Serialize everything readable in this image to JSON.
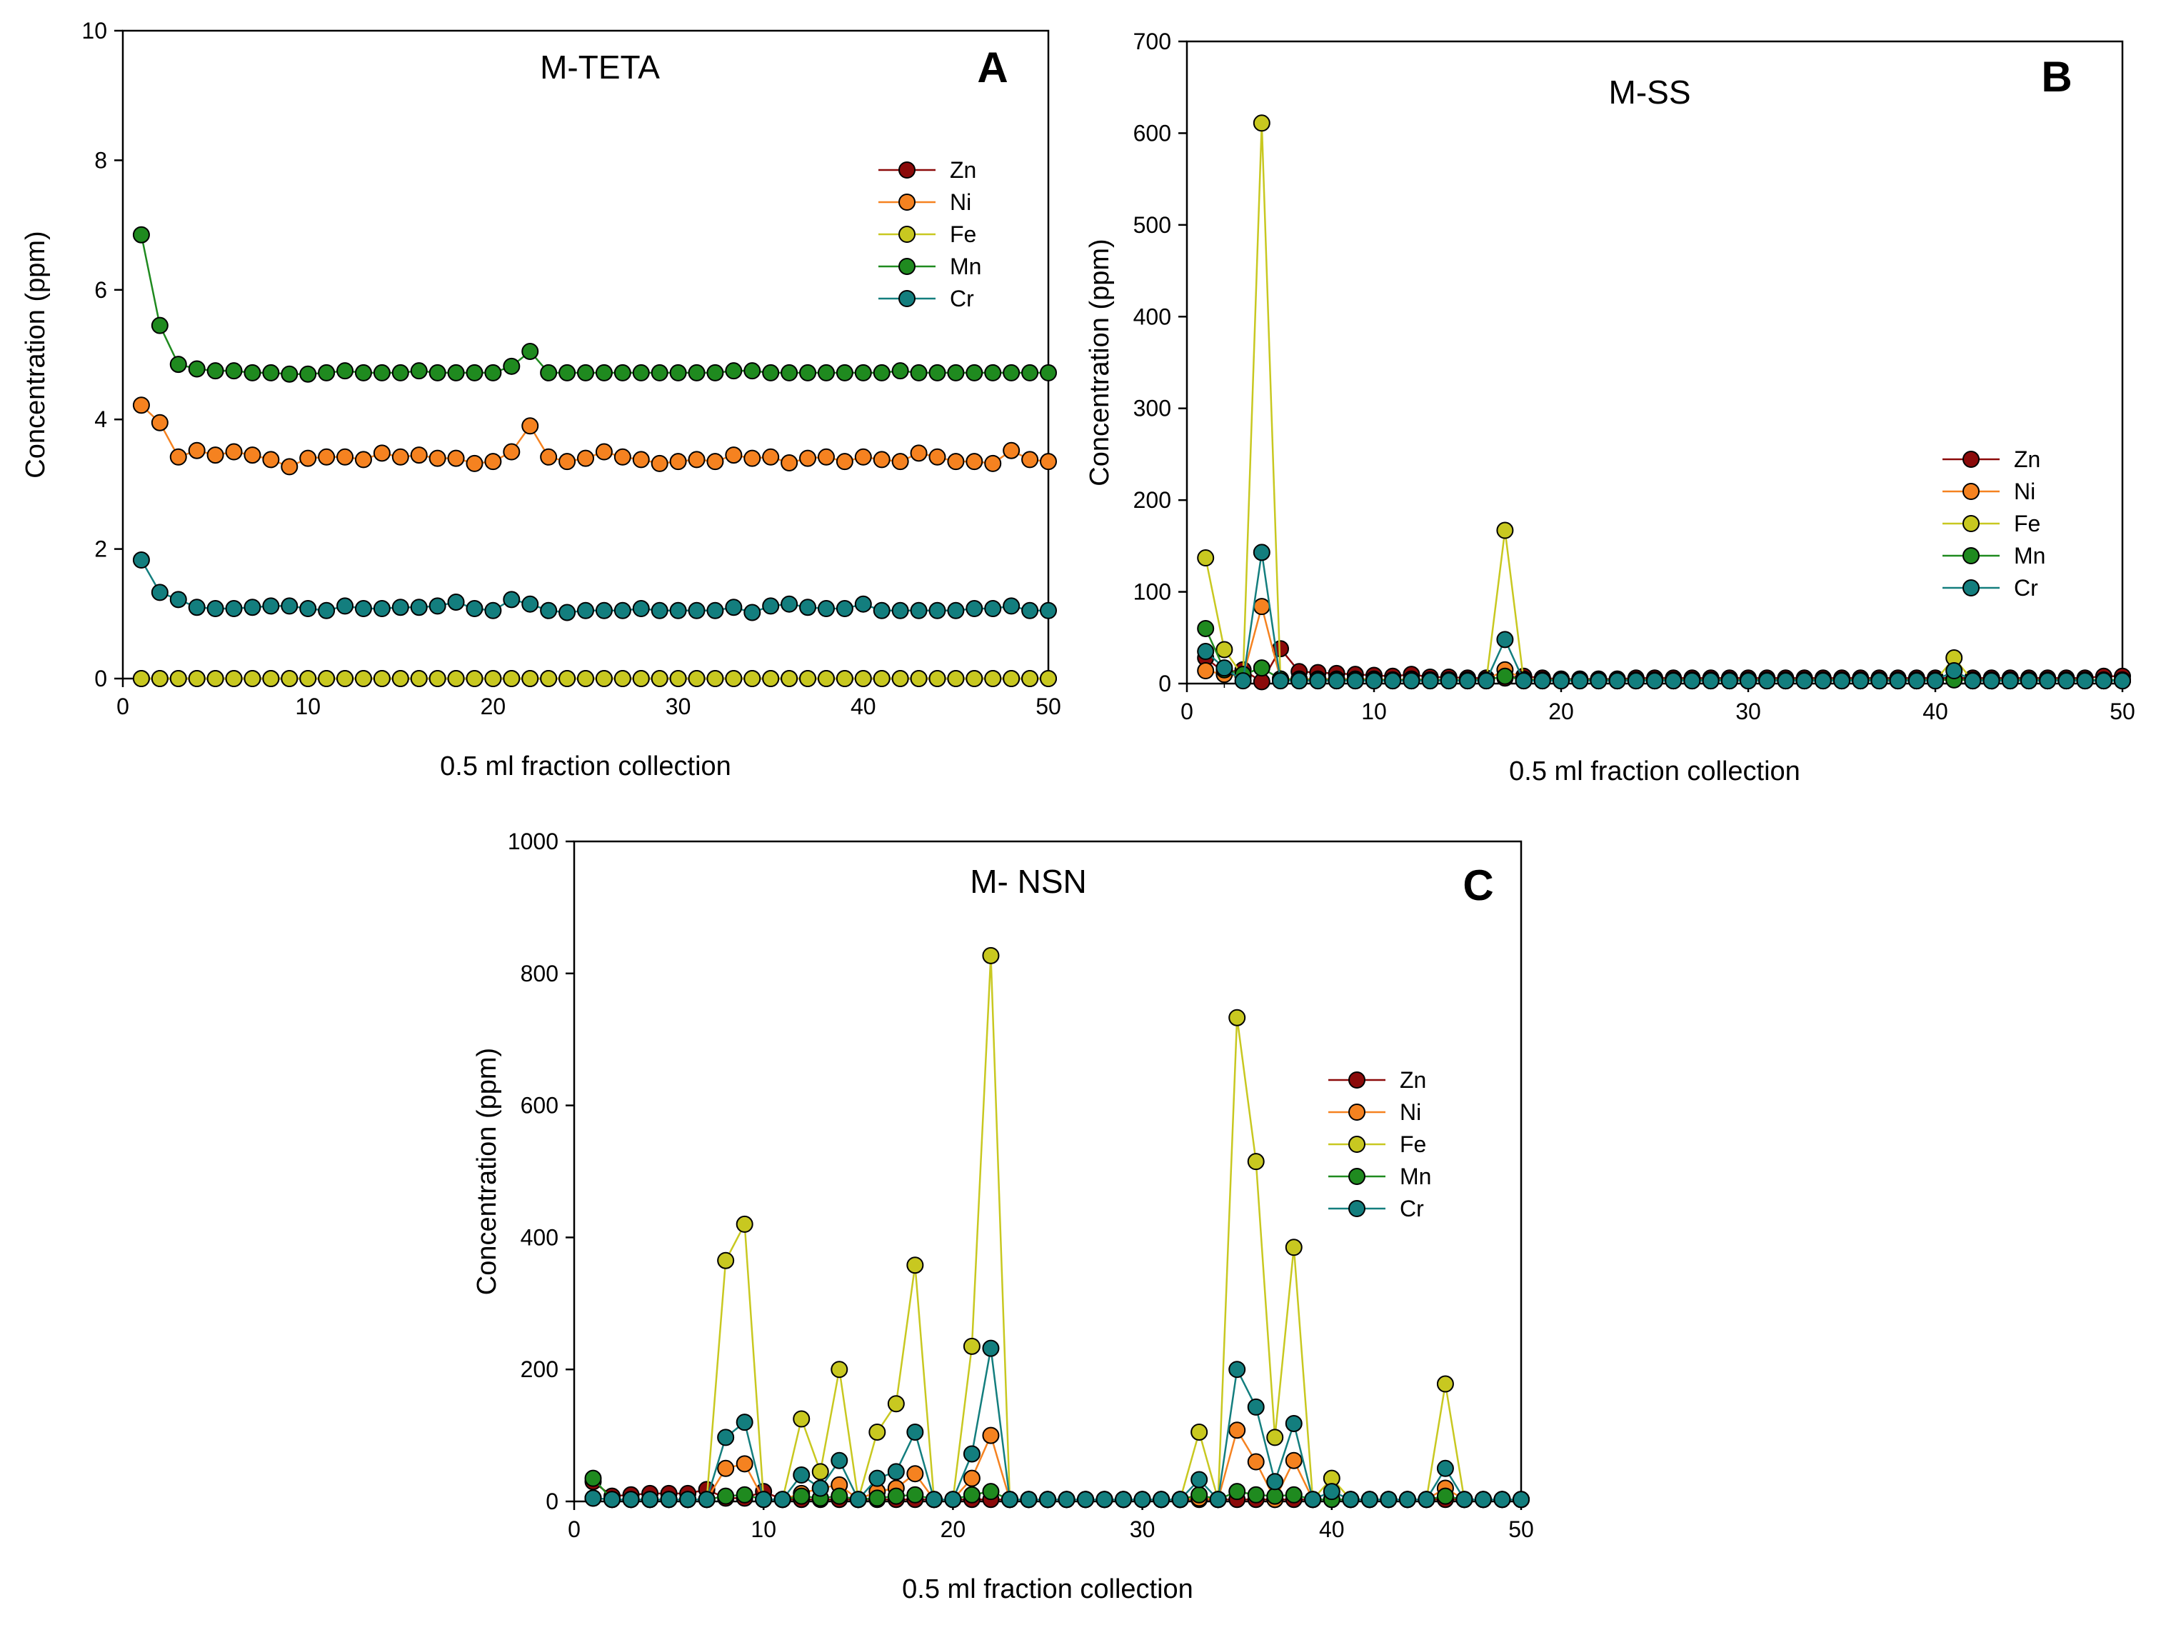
{
  "figure": {
    "colors": {
      "Zn": "#8B0A0A",
      "Ni": "#F58220",
      "Fe": "#C8C820",
      "Mn": "#1F8A1F",
      "Cr": "#137E7E"
    }
  },
  "chart_data": [
    {
      "type": "line",
      "panel": "A",
      "title": "M-TETA",
      "xlabel": "0.5 ml fraction collection",
      "ylabel": "Concentration (ppm)",
      "xlim": [
        0,
        50
      ],
      "ylim": [
        0,
        10
      ],
      "xticks": [
        0,
        10,
        20,
        30,
        40,
        50
      ],
      "yticks": [
        0,
        2,
        4,
        6,
        8,
        10
      ],
      "grid": false,
      "legend": "upper-right",
      "x": [
        1,
        2,
        3,
        4,
        5,
        6,
        7,
        8,
        9,
        10,
        11,
        12,
        13,
        14,
        15,
        16,
        17,
        18,
        19,
        20,
        21,
        22,
        23,
        24,
        25,
        26,
        27,
        28,
        29,
        30,
        31,
        32,
        33,
        34,
        35,
        36,
        37,
        38,
        39,
        40,
        41,
        42,
        43,
        44,
        45,
        46,
        47,
        48,
        49,
        50
      ],
      "series": [
        {
          "name": "Zn",
          "values": [
            0,
            0,
            0,
            0,
            0,
            0,
            0,
            0,
            0,
            0,
            0,
            0,
            0,
            0,
            0,
            0,
            0,
            0,
            0,
            0,
            0,
            0,
            0,
            0,
            0,
            0,
            0,
            0,
            0,
            0,
            0,
            0,
            0,
            0,
            0,
            0,
            0,
            0,
            0,
            0,
            0,
            0,
            0,
            0,
            0,
            0,
            0,
            0,
            0,
            0
          ]
        },
        {
          "name": "Ni",
          "values": [
            4.22,
            3.95,
            3.42,
            3.52,
            3.45,
            3.5,
            3.45,
            3.38,
            3.27,
            3.4,
            3.42,
            3.42,
            3.38,
            3.48,
            3.42,
            3.45,
            3.4,
            3.4,
            3.32,
            3.35,
            3.5,
            3.9,
            3.42,
            3.35,
            3.4,
            3.5,
            3.42,
            3.38,
            3.32,
            3.35,
            3.38,
            3.35,
            3.45,
            3.4,
            3.42,
            3.33,
            3.4,
            3.42,
            3.35,
            3.42,
            3.38,
            3.35,
            3.48,
            3.42,
            3.35,
            3.35,
            3.32,
            3.52,
            3.38,
            3.35
          ]
        },
        {
          "name": "Fe",
          "values": [
            0,
            0,
            0,
            0,
            0,
            0,
            0,
            0,
            0,
            0,
            0,
            0,
            0,
            0,
            0,
            0,
            0,
            0,
            0,
            0,
            0,
            0,
            0,
            0,
            0,
            0,
            0,
            0,
            0,
            0,
            0,
            0,
            0,
            0,
            0,
            0,
            0,
            0,
            0,
            0,
            0,
            0,
            0,
            0,
            0,
            0,
            0,
            0,
            0,
            0
          ]
        },
        {
          "name": "Mn",
          "values": [
            6.85,
            5.45,
            4.85,
            4.78,
            4.75,
            4.75,
            4.72,
            4.72,
            4.7,
            4.7,
            4.72,
            4.75,
            4.72,
            4.72,
            4.72,
            4.75,
            4.72,
            4.72,
            4.72,
            4.72,
            4.82,
            5.05,
            4.72,
            4.72,
            4.72,
            4.72,
            4.72,
            4.72,
            4.72,
            4.72,
            4.72,
            4.72,
            4.75,
            4.75,
            4.72,
            4.72,
            4.72,
            4.72,
            4.72,
            4.72,
            4.72,
            4.75,
            4.72,
            4.72,
            4.72,
            4.72,
            4.72,
            4.72,
            4.72,
            4.72
          ]
        },
        {
          "name": "Cr",
          "values": [
            1.83,
            1.33,
            1.22,
            1.1,
            1.08,
            1.08,
            1.1,
            1.12,
            1.12,
            1.08,
            1.05,
            1.12,
            1.08,
            1.08,
            1.1,
            1.1,
            1.12,
            1.18,
            1.08,
            1.05,
            1.22,
            1.15,
            1.05,
            1.02,
            1.05,
            1.05,
            1.05,
            1.08,
            1.05,
            1.05,
            1.05,
            1.05,
            1.1,
            1.02,
            1.12,
            1.15,
            1.1,
            1.08,
            1.08,
            1.15,
            1.05,
            1.05,
            1.05,
            1.05,
            1.05,
            1.08,
            1.08,
            1.12,
            1.05,
            1.05
          ]
        }
      ]
    },
    {
      "type": "line",
      "panel": "B",
      "title": "M-SS",
      "xlabel": "0.5 ml fraction collection",
      "ylabel": "Concentration (ppm)",
      "xlim": [
        0,
        50
      ],
      "ylim": [
        0,
        700
      ],
      "xticks": [
        0,
        10,
        20,
        30,
        40,
        50
      ],
      "yticks": [
        0,
        100,
        200,
        300,
        400,
        500,
        600,
        700
      ],
      "grid": false,
      "legend": "right",
      "x": [
        1,
        2,
        3,
        4,
        5,
        6,
        7,
        8,
        9,
        10,
        11,
        12,
        13,
        14,
        15,
        16,
        17,
        18,
        19,
        20,
        21,
        22,
        23,
        24,
        25,
        26,
        27,
        28,
        29,
        30,
        31,
        32,
        33,
        34,
        35,
        36,
        37,
        38,
        39,
        40,
        41,
        42,
        43,
        44,
        45,
        46,
        47,
        48,
        49,
        50
      ],
      "series": [
        {
          "name": "Zn",
          "values": [
            28,
            12,
            15,
            2,
            38,
            13,
            12,
            11,
            10,
            9,
            8,
            10,
            7,
            7,
            6,
            6,
            6,
            8,
            6,
            5,
            5,
            5,
            5,
            6,
            6,
            6,
            6,
            6,
            6,
            6,
            6,
            6,
            6,
            6,
            6,
            6,
            6,
            6,
            6,
            6,
            6,
            6,
            6,
            6,
            6,
            6,
            6,
            6,
            8,
            8
          ]
        },
        {
          "name": "Ni",
          "values": [
            14,
            10,
            8,
            84,
            5,
            5,
            5,
            5,
            5,
            5,
            4,
            5,
            4,
            4,
            4,
            4,
            15,
            5,
            4,
            4,
            4,
            4,
            3,
            3,
            3,
            3,
            3,
            3,
            3,
            3,
            3,
            3,
            3,
            3,
            3,
            3,
            3,
            3,
            3,
            3,
            5,
            3,
            3,
            3,
            3,
            3,
            3,
            3,
            3,
            3
          ]
        },
        {
          "name": "Fe",
          "values": [
            137,
            37,
            8,
            611,
            5,
            3,
            3,
            3,
            3,
            3,
            3,
            3,
            3,
            3,
            3,
            3,
            167,
            3,
            3,
            3,
            3,
            3,
            3,
            3,
            3,
            3,
            3,
            3,
            3,
            3,
            3,
            3,
            3,
            3,
            3,
            3,
            3,
            3,
            3,
            3,
            28,
            3,
            3,
            3,
            3,
            3,
            3,
            3,
            3,
            3
          ]
        },
        {
          "name": "Mn",
          "values": [
            60,
            15,
            10,
            17,
            5,
            4,
            4,
            4,
            4,
            4,
            4,
            4,
            4,
            4,
            4,
            4,
            8,
            4,
            4,
            4,
            4,
            4,
            4,
            4,
            4,
            4,
            4,
            4,
            4,
            4,
            4,
            4,
            4,
            4,
            4,
            4,
            4,
            4,
            4,
            4,
            4,
            4,
            4,
            4,
            4,
            4,
            4,
            4,
            4,
            4
          ]
        },
        {
          "name": "Cr",
          "values": [
            35,
            17,
            3,
            143,
            3,
            3,
            3,
            3,
            3,
            3,
            3,
            3,
            3,
            3,
            3,
            3,
            48,
            3,
            3,
            3,
            3,
            3,
            3,
            3,
            3,
            3,
            3,
            3,
            3,
            3,
            3,
            3,
            3,
            3,
            3,
            3,
            3,
            3,
            3,
            3,
            14,
            3,
            3,
            3,
            3,
            3,
            3,
            3,
            3,
            3
          ]
        }
      ]
    },
    {
      "type": "line",
      "panel": "C",
      "title": "M- NSN",
      "xlabel": "0.5 ml fraction collection",
      "ylabel": "Concentration (ppm)",
      "xlim": [
        0,
        50
      ],
      "ylim": [
        0,
        1000
      ],
      "xticks": [
        0,
        10,
        20,
        30,
        40,
        50
      ],
      "yticks": [
        0,
        200,
        400,
        600,
        800,
        1000
      ],
      "grid": false,
      "legend": "right",
      "x": [
        1,
        2,
        3,
        4,
        5,
        6,
        7,
        8,
        9,
        10,
        11,
        12,
        13,
        14,
        15,
        16,
        17,
        18,
        19,
        20,
        21,
        22,
        23,
        24,
        25,
        26,
        27,
        28,
        29,
        30,
        31,
        32,
        33,
        34,
        35,
        36,
        37,
        38,
        39,
        40,
        41,
        42,
        43,
        44,
        45,
        46,
        47,
        48,
        49,
        50
      ],
      "series": [
        {
          "name": "Zn",
          "values": [
            30,
            8,
            10,
            12,
            12,
            12,
            18,
            5,
            5,
            15,
            3,
            3,
            3,
            3,
            3,
            3,
            3,
            3,
            3,
            3,
            3,
            3,
            3,
            3,
            3,
            3,
            3,
            3,
            3,
            3,
            3,
            3,
            3,
            3,
            3,
            3,
            3,
            3,
            3,
            3,
            3,
            3,
            3,
            3,
            3,
            3,
            3,
            3,
            3,
            3
          ]
        },
        {
          "name": "Ni",
          "values": [
            5,
            3,
            3,
            3,
            3,
            3,
            3,
            50,
            57,
            3,
            3,
            12,
            20,
            25,
            3,
            15,
            20,
            42,
            3,
            3,
            35,
            100,
            3,
            3,
            3,
            3,
            3,
            3,
            3,
            3,
            3,
            3,
            5,
            3,
            108,
            60,
            3,
            62,
            3,
            3,
            3,
            3,
            3,
            3,
            3,
            20,
            3,
            3,
            3,
            3
          ]
        },
        {
          "name": "Fe",
          "values": [
            5,
            3,
            3,
            3,
            3,
            3,
            3,
            365,
            420,
            3,
            3,
            125,
            45,
            200,
            3,
            105,
            148,
            358,
            3,
            3,
            235,
            827,
            3,
            3,
            3,
            3,
            3,
            3,
            3,
            3,
            3,
            3,
            105,
            3,
            733,
            515,
            97,
            385,
            3,
            35,
            3,
            3,
            3,
            3,
            3,
            178,
            3,
            3,
            3,
            3
          ]
        },
        {
          "name": "Mn",
          "values": [
            35,
            3,
            3,
            3,
            3,
            3,
            3,
            8,
            10,
            3,
            3,
            8,
            5,
            8,
            3,
            5,
            8,
            10,
            3,
            3,
            10,
            15,
            3,
            3,
            3,
            3,
            3,
            3,
            3,
            3,
            3,
            3,
            10,
            3,
            15,
            10,
            8,
            10,
            3,
            3,
            3,
            3,
            3,
            3,
            3,
            8,
            3,
            3,
            3,
            3
          ]
        },
        {
          "name": "Cr",
          "values": [
            5,
            3,
            3,
            3,
            3,
            3,
            3,
            97,
            120,
            3,
            3,
            40,
            20,
            62,
            3,
            35,
            45,
            105,
            3,
            3,
            72,
            232,
            3,
            3,
            3,
            3,
            3,
            3,
            3,
            3,
            3,
            3,
            33,
            3,
            200,
            143,
            30,
            118,
            3,
            15,
            3,
            3,
            3,
            3,
            3,
            50,
            3,
            3,
            3,
            3
          ]
        }
      ]
    }
  ]
}
